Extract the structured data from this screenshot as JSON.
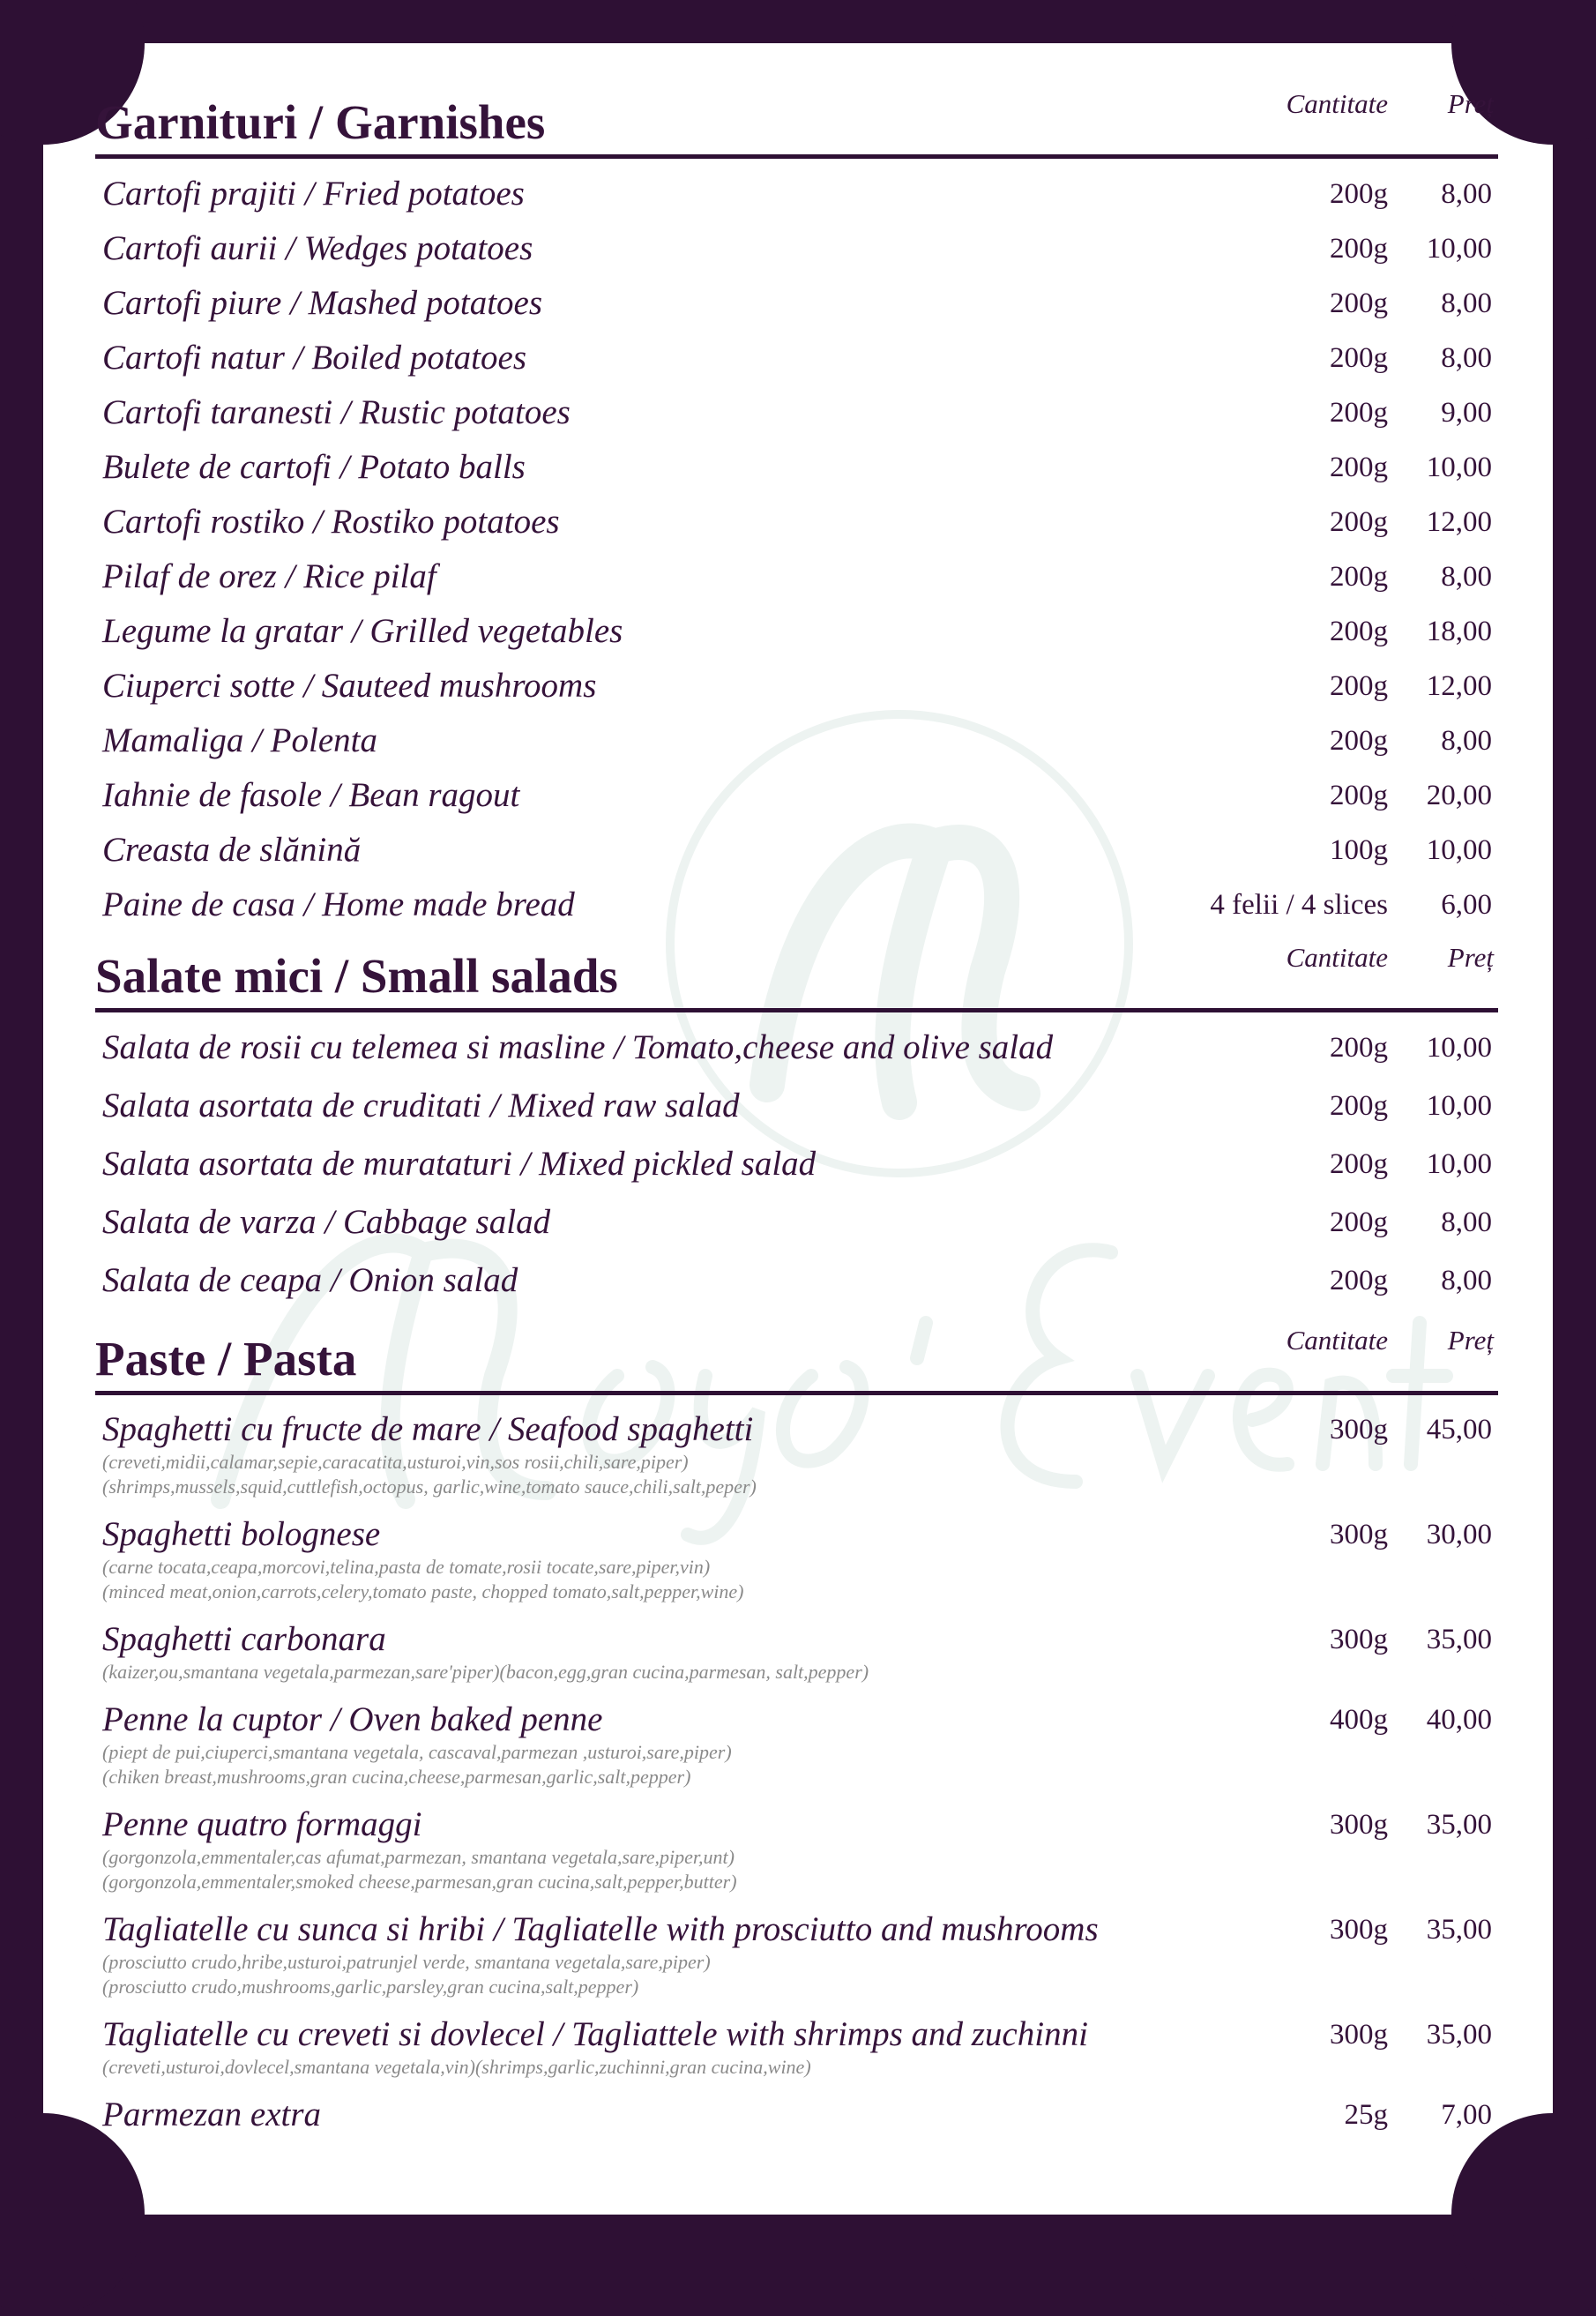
{
  "watermark": "Maya`s Events",
  "columns": {
    "quantity": "Cantitate",
    "price": "Preț"
  },
  "colors": {
    "frame": "#2e1034",
    "text": "#35133a",
    "description": "#8a8a8a"
  },
  "garnishes": {
    "title": "Garnituri / Garnishes",
    "items": [
      {
        "name": "Cartofi prajiti / Fried potatoes",
        "qty": "200g",
        "price": "8,00"
      },
      {
        "name": "Cartofi aurii / Wedges potatoes",
        "qty": "200g",
        "price": "10,00"
      },
      {
        "name": "Cartofi piure / Mashed potatoes",
        "qty": "200g",
        "price": "8,00"
      },
      {
        "name": "Cartofi natur / Boiled potatoes",
        "qty": "200g",
        "price": "8,00"
      },
      {
        "name": "Cartofi taranesti / Rustic potatoes",
        "qty": "200g",
        "price": "9,00"
      },
      {
        "name": "Bulete de cartofi / Potato balls",
        "qty": "200g",
        "price": "10,00"
      },
      {
        "name": "Cartofi rostiko  / Rostiko potatoes",
        "qty": "200g",
        "price": "12,00"
      },
      {
        "name": "Pilaf de orez / Rice pilaf",
        "qty": "200g",
        "price": "8,00"
      },
      {
        "name": "Legume la gratar / Grilled vegetables",
        "qty": "200g",
        "price": "18,00"
      },
      {
        "name": "Ciuperci sotte / Sauteed mushrooms",
        "qty": "200g",
        "price": "12,00"
      },
      {
        "name": "Mamaliga / Polenta",
        "qty": "200g",
        "price": "8,00"
      },
      {
        "name": "Iahnie de fasole / Bean ragout",
        "qty": "200g",
        "price": "20,00"
      },
      {
        "name": "Creasta de slănină",
        "qty": "100g",
        "price": "10,00"
      },
      {
        "name": "Paine de casa / Home made bread",
        "qty": "4 felii / 4 slices",
        "price": "6,00"
      }
    ]
  },
  "salads": {
    "title": "Salate mici / Small salads",
    "items": [
      {
        "name": "Salata de rosii cu telemea si masline / Tomato,cheese and olive salad",
        "qty": "200g",
        "price": "10,00"
      },
      {
        "name": "Salata asortata de cruditati / Mixed raw salad",
        "qty": "200g",
        "price": "10,00"
      },
      {
        "name": "Salata asortata de murataturi / Mixed pickled salad",
        "qty": "200g",
        "price": "10,00"
      },
      {
        "name": "Salata de varza / Cabbage salad",
        "qty": "200g",
        "price": "8,00"
      },
      {
        "name": "Salata de ceapa / Onion salad",
        "qty": "200g",
        "price": "8,00"
      }
    ]
  },
  "pasta": {
    "title": "Paste / Pasta",
    "items": [
      {
        "name": "Spaghetti cu fructe de mare / Seafood spaghetti",
        "qty": "300g",
        "price": "45,00",
        "desc": [
          "(creveti,midii,calamar,sepie,caracatita,usturoi,vin,sos rosii,chili,sare,piper)",
          "(shrimps,mussels,squid,cuttlefish,octopus, garlic,wine,tomato sauce,chili,salt,peper)"
        ]
      },
      {
        "name": "Spaghetti bolognese",
        "qty": "300g",
        "price": "30,00",
        "desc": [
          "(carne tocata,ceapa,morcovi,telina,pasta de tomate,rosii tocate,sare,piper,vin)",
          "(minced meat,onion,carrots,celery,tomato paste, chopped tomato,salt,pepper,wine)"
        ]
      },
      {
        "name": "Spaghetti carbonara",
        "qty": "300g",
        "price": "35,00",
        "desc": [
          " (kaizer,ou,smantana vegetala,parmezan,sare'piper)(bacon,egg,gran cucina,parmesan, salt,pepper)"
        ]
      },
      {
        "name": "Penne la cuptor / Oven baked penne",
        "qty": "400g",
        "price": "40,00",
        "desc": [
          "(piept de pui,ciuperci,smantana vegetala, cascaval,parmezan ,usturoi,sare,piper)",
          " (chiken breast,mushrooms,gran cucina,cheese,parmesan,garlic,salt,pepper)"
        ]
      },
      {
        "name": "Penne quatro formaggi",
        "qty": "300g",
        "price": "35,00",
        "desc": [
          "(gorgonzola,emmentaler,cas afumat,parmezan, smantana vegetala,sare,piper,unt)",
          "(gorgonzola,emmentaler,smoked cheese,parmesan,gran cucina,salt,pepper,butter)"
        ]
      },
      {
        "name": "Tagliatelle cu sunca si hribi / Tagliatelle with prosciutto and mushrooms",
        "qty": "300g",
        "price": "35,00",
        "desc": [
          "(prosciutto crudo,hribe,usturoi,patrunjel verde, smantana vegetala,sare,piper)",
          "(prosciutto crudo,mushrooms,garlic,parsley,gran cucina,salt,pepper)"
        ]
      },
      {
        "name": "Tagliatelle cu creveti si dovlecel / Tagliattele with shrimps and zuchinni",
        "qty": "300g",
        "price": "35,00",
        "desc": [
          "(creveti,usturoi,dovlecel,smantana vegetala,vin)(shrimps,garlic,zuchinni,gran cucina,wine)"
        ]
      },
      {
        "name": "Parmezan extra",
        "qty": "25g",
        "price": "7,00",
        "desc": []
      }
    ]
  }
}
